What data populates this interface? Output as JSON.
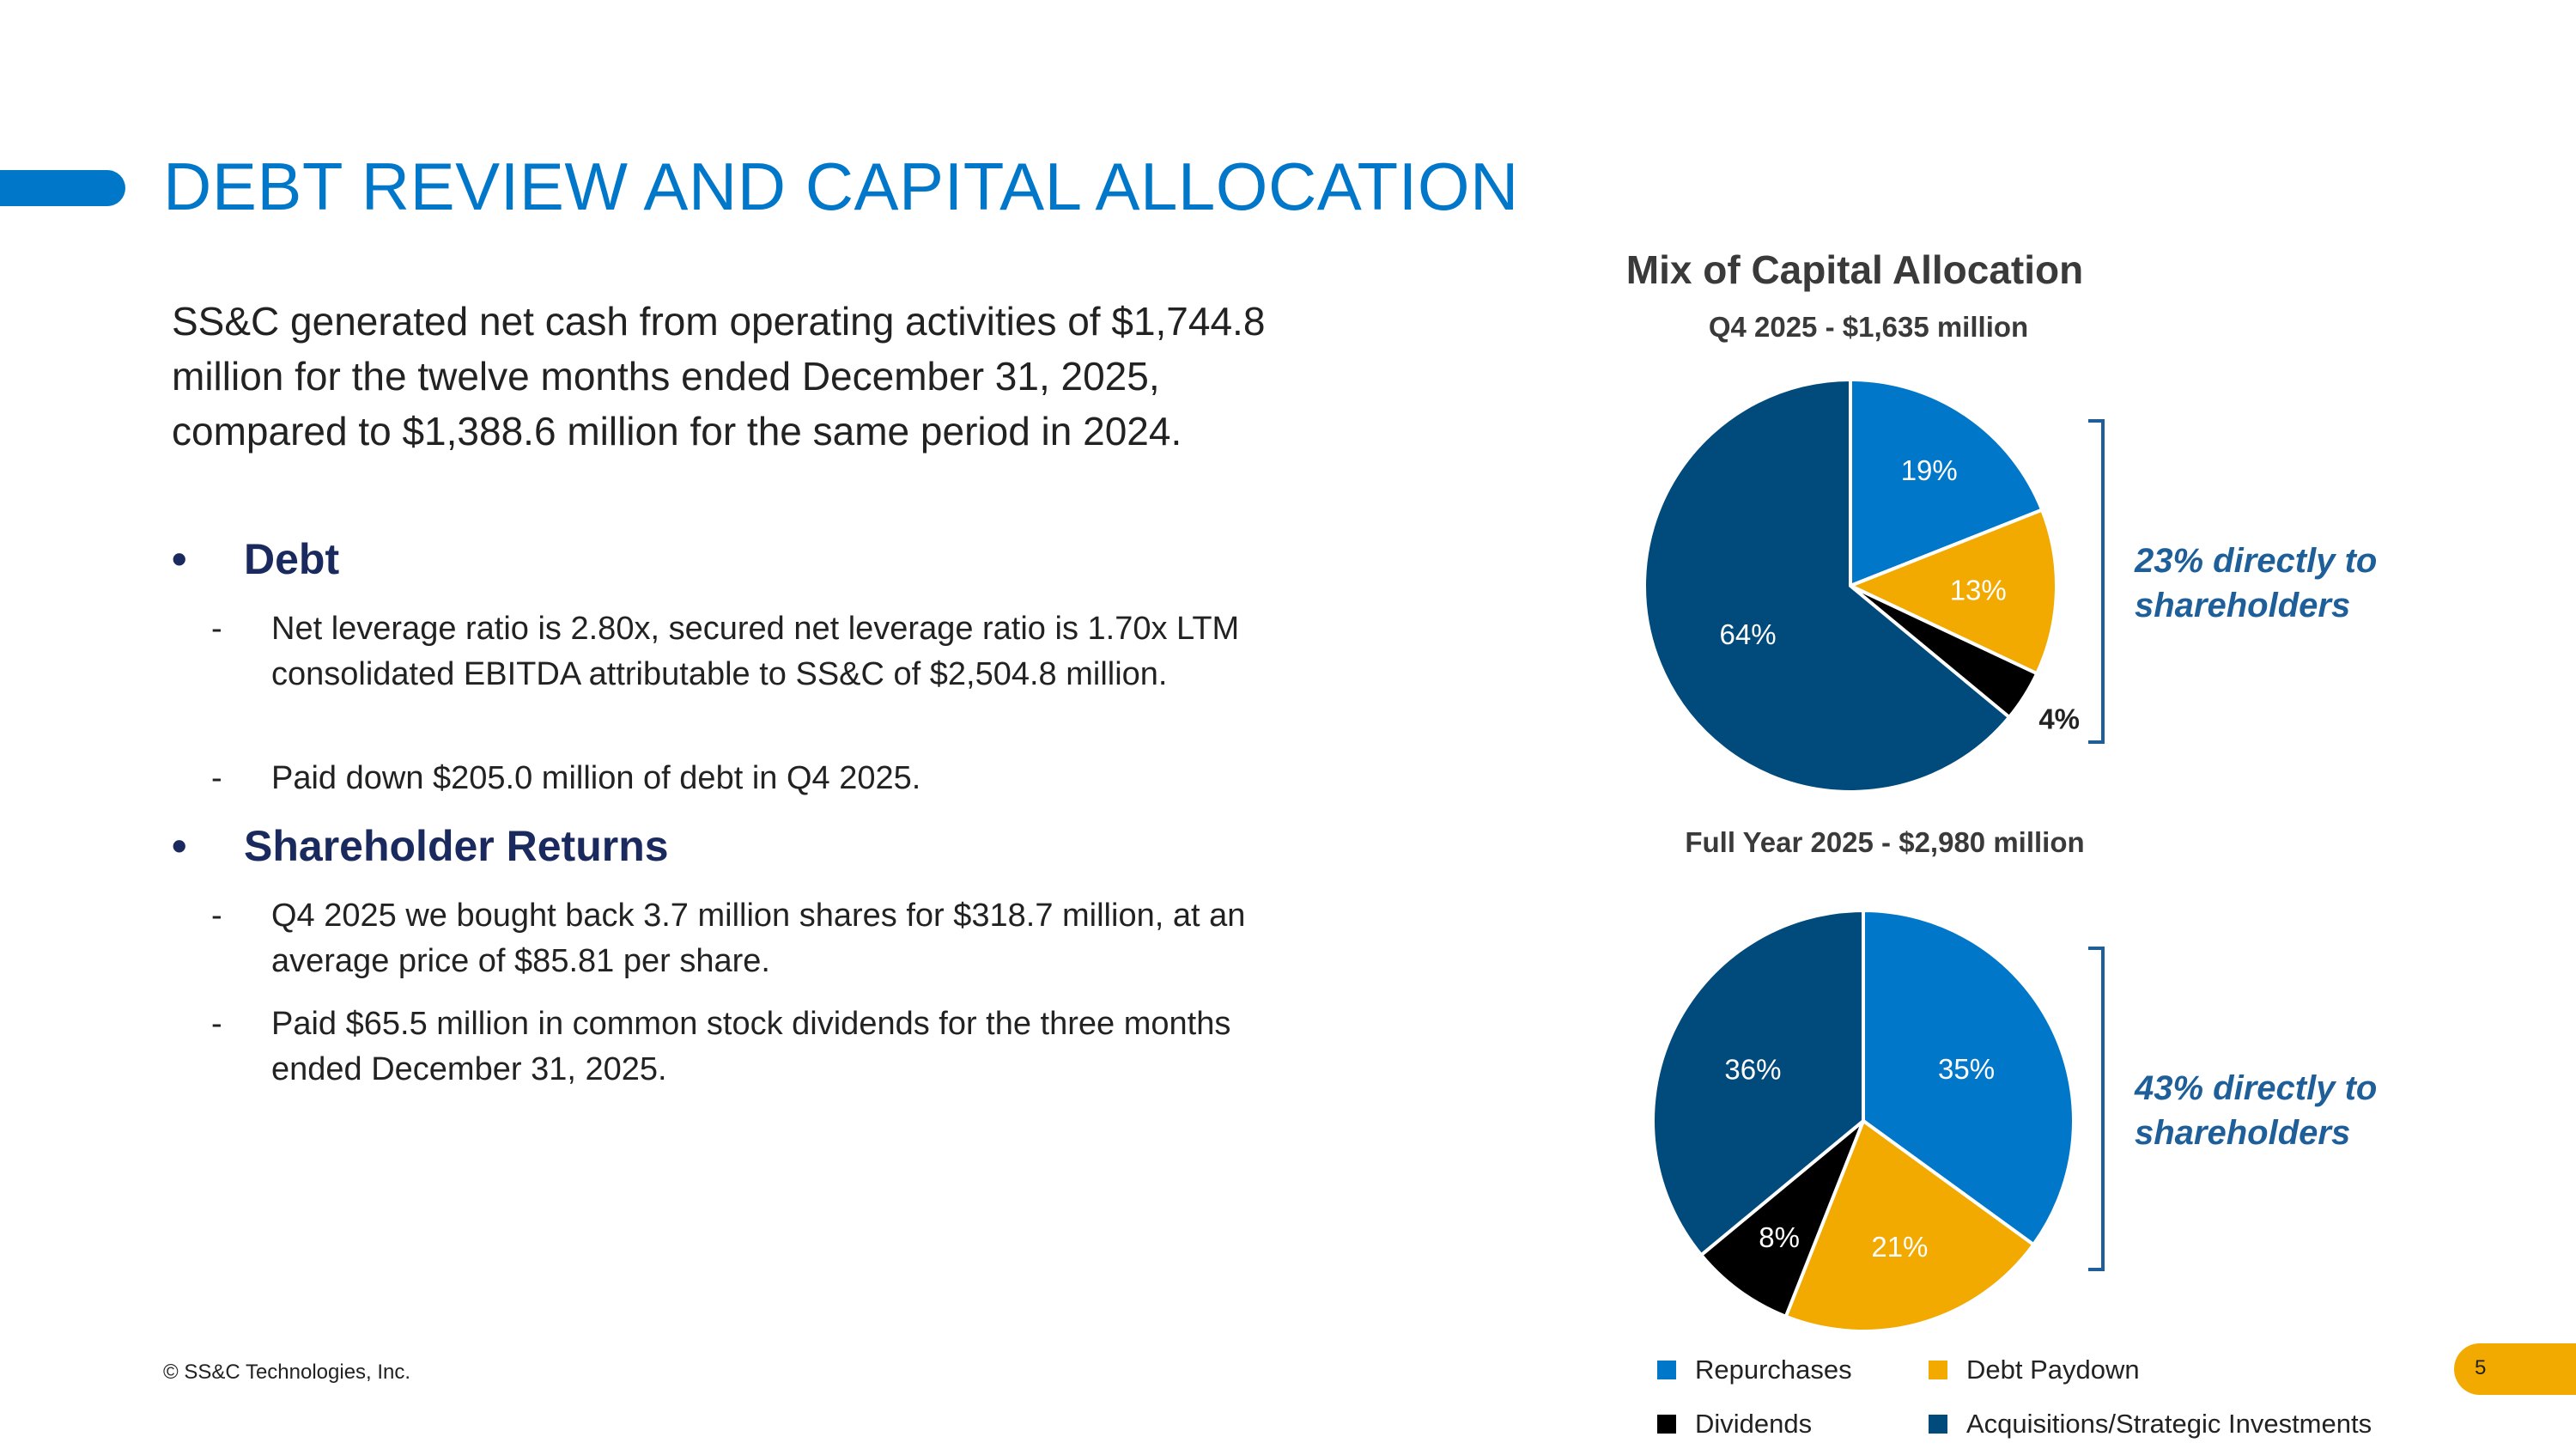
{
  "header": {
    "title": "DEBT REVIEW AND CAPITAL ALLOCATION"
  },
  "body": {
    "intro": "SS&C generated net cash from operating activities of $1,744.8 million for the twelve months ended December 31, 2025, compared to $1,388.6 million for the same period in 2024.",
    "sections": [
      {
        "heading": "Debt",
        "items": [
          "Net leverage ratio is 2.80x, secured net leverage ratio is 1.70x LTM consolidated EBITDA attributable to SS&C of $2,504.8 million.",
          "Paid down $205.0 million of debt in Q4 2025."
        ]
      },
      {
        "heading": "Shareholder Returns",
        "items": [
          "Q4 2025 we bought back 3.7 million shares for $318.7 million, at an average price of $85.81 per share.",
          "Paid $65.5 million in common stock dividends for the three months ended December 31, 2025."
        ]
      }
    ],
    "bullet_char": "•",
    "dash_char": "-"
  },
  "footer": {
    "copyright": "© SS&C Technologies, Inc.",
    "page_number": "5"
  },
  "chart_data": [
    {
      "type": "pie",
      "title": "Mix of Capital Allocation",
      "subtitle": "Q4 2025 - $1,635 million",
      "slices": [
        {
          "label": "Repurchases",
          "value": 19,
          "display": "19%",
          "color": "#0077c8"
        },
        {
          "label": "Debt Paydown",
          "value": 13,
          "display": "13%",
          "color": "#f2a900"
        },
        {
          "label": "Dividends",
          "value": 4,
          "display": "4%",
          "color": "#000000"
        },
        {
          "label": "Acquisitions/Strategic Investments",
          "value": 64,
          "display": "64%",
          "color": "#004a7c"
        }
      ],
      "bracket_note": "23% directly to shareholders"
    },
    {
      "type": "pie",
      "subtitle": "Full Year 2025 - $2,980 million",
      "slices": [
        {
          "label": "Repurchases",
          "value": 35,
          "display": "35%",
          "color": "#0077c8"
        },
        {
          "label": "Debt Paydown",
          "value": 21,
          "display": "21%",
          "color": "#f2a900"
        },
        {
          "label": "Dividends",
          "value": 8,
          "display": "8%",
          "color": "#000000"
        },
        {
          "label": "Acquisitions/Strategic Investments",
          "value": 36,
          "display": "36%",
          "color": "#004a7c"
        }
      ],
      "bracket_note": "43% directly to shareholders"
    }
  ],
  "legend": [
    {
      "label": "Repurchases",
      "color": "#0077c8"
    },
    {
      "label": "Debt Paydown",
      "color": "#f2a900"
    },
    {
      "label": "Dividends",
      "color": "#000000"
    },
    {
      "label": "Acquisitions/Strategic Investments",
      "color": "#004a7c"
    }
  ],
  "colors": {
    "accent": "#0077c8",
    "heading_navy": "#1a2a5e",
    "note_blue": "#1f5f99",
    "page_badge": "#f2a900"
  }
}
